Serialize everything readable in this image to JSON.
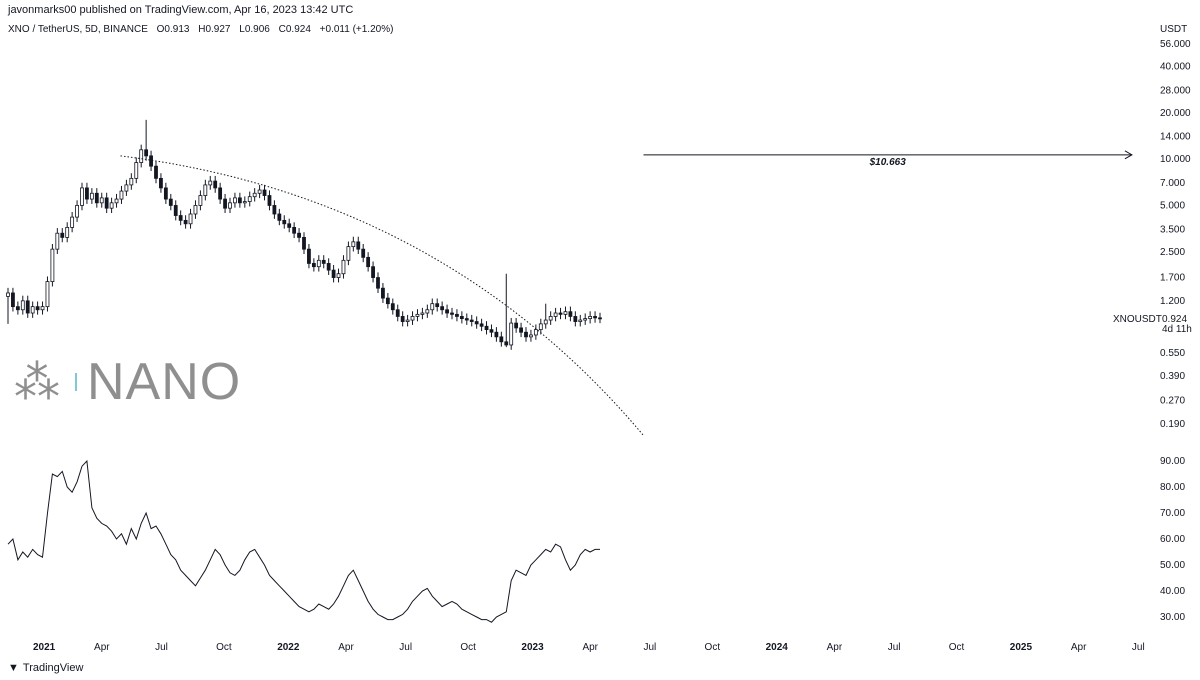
{
  "header": {
    "published": "javonmarks00 published on TradingView.com, Apr 16, 2023 13:42 UTC"
  },
  "legend": {
    "symbol": "XNO / TetherUS, 5D, BINANCE",
    "open": "O0.913",
    "high": "H0.927",
    "low": "L0.906",
    "close": "C0.924",
    "change": "+0.011 (+1.20%)"
  },
  "watermark": {
    "text": "NANO",
    "icon": "nano-x-icon"
  },
  "price_label": {
    "symbol": "XNOUSDT",
    "price": "0.924",
    "countdown": "4d 11h"
  },
  "target_label": "$10.663",
  "footer": {
    "brand": "TradingView",
    "icon": "tradingview-logo-icon"
  },
  "colors": {
    "candle": "#131722",
    "grid": "#ffffff",
    "text": "#131722",
    "watermark": "#8f8f8f",
    "accent": "#7ec8d8"
  },
  "chart_data": [
    {
      "type": "candlestick",
      "title": "",
      "y_unit": "USDT",
      "y_scale": "log",
      "y_ticks": [
        56,
        40,
        28,
        20,
        14,
        10,
        7,
        5,
        3.5,
        2.5,
        1.7,
        1.2,
        0.924,
        0.55,
        0.39,
        0.27,
        0.19
      ],
      "y_tick_labels": [
        "56.000",
        "40.000",
        "28.000",
        "20.000",
        "14.000",
        "10.000",
        "7.000",
        "5.000",
        "3.500",
        "2.500",
        "1.700",
        "1.200",
        "0.924",
        "0.550",
        "0.390",
        "0.270",
        "0.190"
      ],
      "x_ticks": [
        "2021",
        "Apr",
        "Jul",
        "Oct",
        "2022",
        "Apr",
        "Jul",
        "Oct",
        "2023",
        "Apr",
        "Jul",
        "Oct",
        "2024",
        "Apr",
        "Jul",
        "Oct",
        "2025",
        "Apr",
        "Jul"
      ],
      "x_tick_bold": [
        true,
        false,
        false,
        false,
        true,
        false,
        false,
        false,
        true,
        false,
        false,
        false,
        true,
        false,
        false,
        false,
        true,
        false,
        false
      ],
      "series": [
        {
          "close": [
            1.35,
            1.1,
            1.05,
            1.2,
            1.0,
            1.1,
            1.05,
            1.1,
            1.6,
            2.6,
            3.3,
            3.1,
            3.6,
            4.2,
            5.0,
            6.5,
            5.5,
            6.0,
            5.2,
            5.6,
            4.8,
            5.2,
            5.5,
            6.2,
            6.8,
            7.5,
            9.5,
            11.5,
            10.5,
            9.0,
            7.5,
            6.5,
            5.5,
            5.0,
            4.3,
            4.0,
            3.8,
            4.4,
            5.0,
            5.8,
            6.8,
            7.2,
            6.5,
            5.5,
            4.8,
            5.2,
            5.6,
            5.2,
            5.3,
            5.7,
            6.0,
            6.3,
            5.8,
            5.0,
            4.4,
            4.0,
            3.8,
            3.6,
            3.3,
            3.1,
            2.6,
            2.1,
            2.0,
            2.2,
            2.1,
            1.9,
            1.7,
            1.8,
            2.2,
            2.7,
            2.9,
            2.6,
            2.3,
            2.0,
            1.7,
            1.45,
            1.25,
            1.15,
            1.05,
            0.95,
            0.88,
            0.9,
            0.95,
            0.98,
            1.0,
            1.05,
            1.15,
            1.1,
            1.05,
            1.0,
            0.98,
            0.95,
            0.92,
            0.9,
            0.88,
            0.85,
            0.82,
            0.78,
            0.75,
            0.7,
            0.65,
            0.62,
            0.86,
            0.8,
            0.75,
            0.7,
            0.72,
            0.78,
            0.85,
            0.9,
            0.95,
            1.0,
            0.98,
            1.02,
            0.95,
            0.88,
            0.9,
            0.92,
            0.95,
            0.93,
            0.924
          ],
          "high_spikes": [
            [
              28,
              18.0
            ],
            [
              101,
              1.8
            ],
            [
              109,
              1.15
            ]
          ],
          "low_spikes": [
            [
              0,
              0.85
            ],
            [
              101,
              0.6
            ]
          ]
        }
      ],
      "trendline": {
        "style": "dotted",
        "from": [
          "May 2021",
          10.5
        ],
        "to": [
          "Jul 2023",
          0.16
        ]
      },
      "target_line": {
        "label": "$10.663",
        "value": 10.663,
        "from": "Jul 2023",
        "to": "Jul 2025"
      }
    },
    {
      "type": "line",
      "title": "",
      "y_ticks": [
        90,
        80,
        70,
        60,
        50,
        40,
        30
      ],
      "y_tick_labels": [
        "90.00",
        "80.00",
        "70.00",
        "60.00",
        "50.00",
        "40.00",
        "30.00"
      ],
      "series": [
        {
          "values": [
            58,
            60,
            52,
            55,
            53,
            56,
            54,
            53,
            70,
            85,
            84,
            86,
            80,
            78,
            82,
            88,
            90,
            72,
            68,
            66,
            65,
            63,
            60,
            62,
            58,
            64,
            60,
            66,
            70,
            64,
            65,
            62,
            58,
            54,
            52,
            48,
            46,
            44,
            42,
            45,
            48,
            52,
            56,
            54,
            50,
            47,
            46,
            48,
            52,
            55,
            56,
            53,
            50,
            46,
            44,
            42,
            40,
            38,
            36,
            34,
            33,
            32,
            33,
            35,
            34,
            33,
            35,
            38,
            42,
            46,
            48,
            44,
            40,
            36,
            33,
            31,
            30,
            29,
            29,
            30,
            31,
            33,
            36,
            38,
            40,
            41,
            38,
            36,
            34,
            35,
            36,
            35,
            33,
            32,
            31,
            30,
            29,
            29,
            28,
            30,
            31,
            32,
            44,
            48,
            47,
            46,
            50,
            52,
            54,
            56,
            55,
            58,
            57,
            52,
            48,
            50,
            54,
            56,
            55,
            56,
            56
          ]
        }
      ]
    }
  ]
}
